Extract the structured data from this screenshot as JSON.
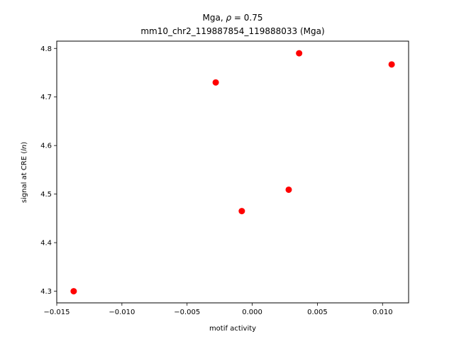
{
  "chart_data": {
    "type": "scatter",
    "title_line1": "Mga, ρ = 0.75",
    "title_line2": "mm10_chr2_119887854_119888033 (Mga)",
    "xlabel": "motif activity",
    "ylabel": "signal at CRE (ln)",
    "xlim": [
      -0.015,
      0.012
    ],
    "ylim": [
      4.276,
      4.815
    ],
    "xticks": [
      -0.015,
      -0.01,
      -0.005,
      0.0,
      0.005,
      0.01
    ],
    "xtick_labels": [
      "−0.015",
      "−0.010",
      "−0.005",
      "0.000",
      "0.005",
      "0.010"
    ],
    "yticks": [
      4.3,
      4.4,
      4.5,
      4.6,
      4.7,
      4.8
    ],
    "ytick_labels": [
      "4.3",
      "4.4",
      "4.5",
      "4.6",
      "4.7",
      "4.8"
    ],
    "marker_color": "#ff0000",
    "grid": false,
    "points": [
      {
        "x": -0.0137,
        "y": 4.3
      },
      {
        "x": -0.0028,
        "y": 4.73
      },
      {
        "x": -0.0008,
        "y": 4.465
      },
      {
        "x": 0.0028,
        "y": 4.509
      },
      {
        "x": 0.0036,
        "y": 4.79
      },
      {
        "x": 0.0107,
        "y": 4.767
      }
    ]
  }
}
